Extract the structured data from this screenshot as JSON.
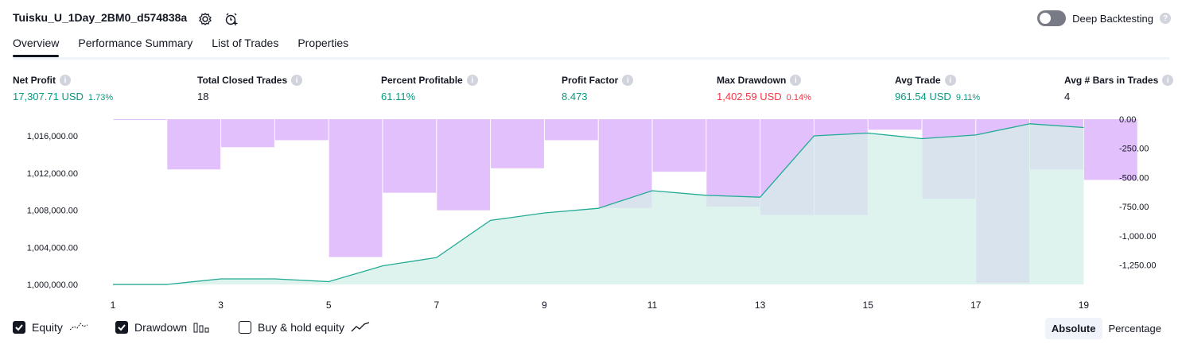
{
  "header": {
    "title": "Tuisku_U_1Day_2BM0_d574838a",
    "deep_backtesting_label": "Deep Backtesting"
  },
  "tabs": [
    {
      "label": "Overview",
      "active": true
    },
    {
      "label": "Performance Summary",
      "active": false
    },
    {
      "label": "List of Trades",
      "active": false
    },
    {
      "label": "Properties",
      "active": false
    }
  ],
  "metrics": [
    {
      "label": "Net Profit",
      "value": "17,307.71 USD",
      "pct": "1.73%",
      "color": "green"
    },
    {
      "label": "Total Closed Trades",
      "value": "18",
      "pct": "",
      "color": "dark"
    },
    {
      "label": "Percent Profitable",
      "value": "61.11%",
      "pct": "",
      "color": "green"
    },
    {
      "label": "Profit Factor",
      "value": "8.473",
      "pct": "",
      "color": "green"
    },
    {
      "label": "Max Drawdown",
      "value": "1,402.59 USD",
      "pct": "0.14%",
      "color": "red"
    },
    {
      "label": "Avg Trade",
      "value": "961.54 USD",
      "pct": "9.11%",
      "color": "green"
    },
    {
      "label": "Avg # Bars in Trades",
      "value": "4",
      "pct": "",
      "color": "dark"
    }
  ],
  "chart_data": {
    "type": "area",
    "x": [
      1,
      2,
      3,
      4,
      5,
      6,
      7,
      8,
      9,
      10,
      11,
      12,
      13,
      14,
      15,
      16,
      17,
      18,
      19
    ],
    "x_tick_labels": [
      "1",
      "3",
      "5",
      "7",
      "9",
      "11",
      "13",
      "15",
      "17",
      "19"
    ],
    "series": [
      {
        "name": "Equity",
        "axis": "left",
        "values": [
          1000000,
          1000000,
          1000600,
          1000600,
          1000300,
          1002000,
          1002900,
          1006900,
          1007700,
          1008200,
          1010100,
          1009600,
          1009400,
          1016000,
          1016300,
          1015700,
          1016100,
          1017300,
          1016900
        ]
      },
      {
        "name": "Drawdown",
        "axis": "right",
        "type": "bar",
        "values": [
          0,
          -430,
          -240,
          -180,
          -1180,
          -630,
          -780,
          -420,
          -180,
          -760,
          -450,
          -750,
          -820,
          -820,
          -90,
          -680,
          -1402.59,
          -430,
          -520
        ]
      }
    ],
    "left_axis": {
      "ticks": [
        "1,000,000.00",
        "1,004,000.00",
        "1,008,000.00",
        "1,012,000.00",
        "1,016,000.00"
      ],
      "range": [
        1000000,
        1017800
      ]
    },
    "right_axis": {
      "ticks": [
        "0.00",
        "-250.00",
        "-500.00",
        "-750.00",
        "-1,000.00",
        "-1,250.00"
      ],
      "range": [
        -1415,
        0
      ]
    },
    "colors": {
      "equity_line": "#22ab94",
      "equity_fill": "#d4efe8",
      "drawdown_bar": "#e1c0fb"
    }
  },
  "legend": {
    "equity_label": "Equity",
    "drawdown_label": "Drawdown",
    "buyhold_label": "Buy & hold equity",
    "equity_checked": true,
    "drawdown_checked": true,
    "buyhold_checked": false
  },
  "view_toggle": {
    "absolute": "Absolute",
    "percentage": "Percentage",
    "selected": "Absolute"
  }
}
